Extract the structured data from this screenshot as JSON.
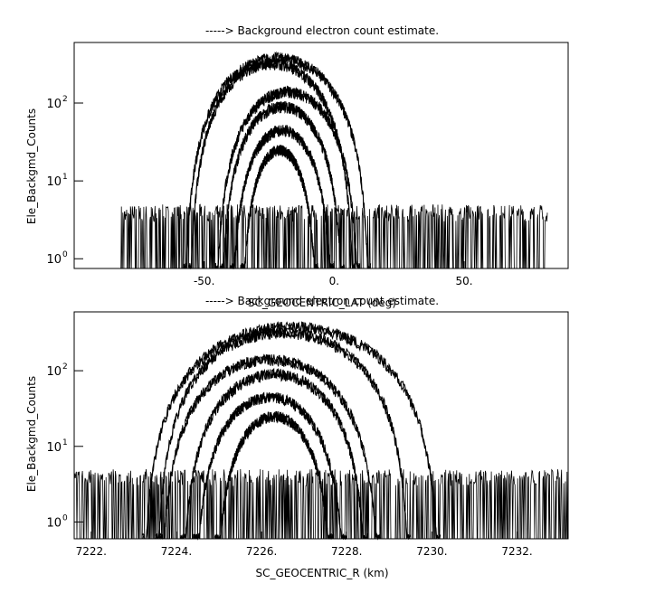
{
  "colors": {
    "background": "#ffffff",
    "ink": "#000000"
  },
  "chart_data": [
    {
      "type": "line",
      "title": "-----> Background electron count estimate.",
      "xlabel": "SC_GEOCENTRIC_LAT (deg)",
      "ylabel": "Ele_Backgmd_Counts",
      "y_scale": "log",
      "xlim": [
        -100,
        90
      ],
      "ylim": [
        0.75,
        600
      ],
      "x_ticks": [
        -50,
        0,
        50
      ],
      "x_tick_labels": [
        "-50.",
        "0.",
        "50."
      ],
      "y_ticks": [
        1,
        10,
        100
      ],
      "y_tick_labels": [
        "10",
        "10",
        "10"
      ],
      "y_tick_exponents": [
        "0",
        "1",
        "2"
      ],
      "data_x_range": [
        -82,
        82
      ],
      "background_level": [
        1,
        5
      ],
      "series": [
        {
          "center": -22,
          "half_width": 36,
          "peak": 380
        },
        {
          "center": -24,
          "half_width": 32,
          "peak": 320
        },
        {
          "center": -18,
          "half_width": 28,
          "peak": 140
        },
        {
          "center": -20,
          "half_width": 24,
          "peak": 90
        },
        {
          "center": -20,
          "half_width": 20,
          "peak": 45
        },
        {
          "center": -21,
          "half_width": 15,
          "peak": 25
        }
      ],
      "grid": false
    },
    {
      "type": "line",
      "title": "-----> Background electron count estimate.",
      "xlabel": "SC_GEOCENTRIC_R (km)",
      "ylabel": "Ele_Backgmd_Counts",
      "y_scale": "log",
      "xlim": [
        7221.6,
        7233.2
      ],
      "ylim": [
        0.6,
        600
      ],
      "x_ticks": [
        7222,
        7224,
        7226,
        7228,
        7230,
        7232
      ],
      "x_tick_labels": [
        "7222.",
        "7224.",
        "7226.",
        "7228.",
        "7230.",
        "7232."
      ],
      "y_ticks": [
        1,
        10,
        100
      ],
      "y_tick_labels": [
        "10",
        "10",
        "10"
      ],
      "y_tick_exponents": [
        "0",
        "1",
        "2"
      ],
      "data_x_range": [
        7221.6,
        7233.2
      ],
      "background_level": [
        1,
        5
      ],
      "series": [
        {
          "center": 7226.7,
          "half_width": 3.5,
          "peak": 380
        },
        {
          "center": 7226.5,
          "half_width": 3.0,
          "peak": 320
        },
        {
          "center": 7226.2,
          "half_width": 2.6,
          "peak": 140
        },
        {
          "center": 7226.3,
          "half_width": 2.2,
          "peak": 90
        },
        {
          "center": 7226.2,
          "half_width": 1.8,
          "peak": 45
        },
        {
          "center": 7226.3,
          "half_width": 1.4,
          "peak": 25
        }
      ],
      "grid": false
    }
  ]
}
